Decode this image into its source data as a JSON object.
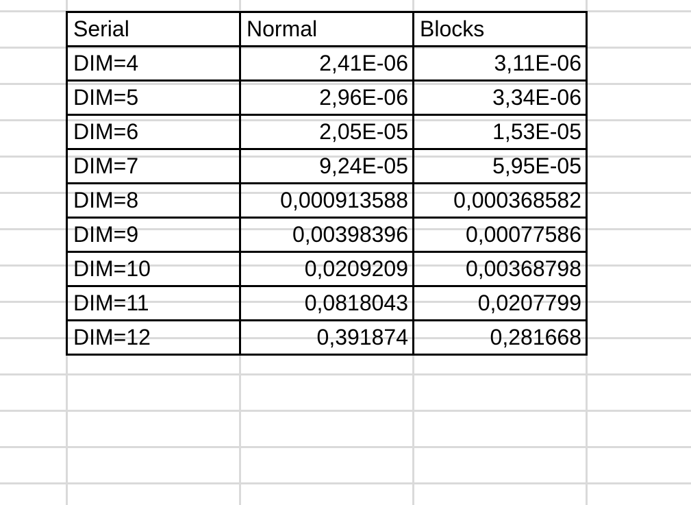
{
  "sheet": {
    "header": [
      "Serial",
      "Normal",
      "Blocks"
    ],
    "rows": [
      [
        "DIM=4",
        "2,41E-06",
        "3,11E-06"
      ],
      [
        "DIM=5",
        "2,96E-06",
        "3,34E-06"
      ],
      [
        "DIM=6",
        "2,05E-05",
        "1,53E-05"
      ],
      [
        "DIM=7",
        "9,24E-05",
        "5,95E-05"
      ],
      [
        "DIM=8",
        "0,000913588",
        "0,000368582"
      ],
      [
        "DIM=9",
        "0,00398396",
        "0,00077586"
      ],
      [
        "DIM=10",
        "0,0209209",
        "0,00368798"
      ],
      [
        "DIM=11",
        "0,0818043",
        "0,0207799"
      ],
      [
        "DIM=12",
        "0,391874",
        "0,281668"
      ]
    ]
  }
}
